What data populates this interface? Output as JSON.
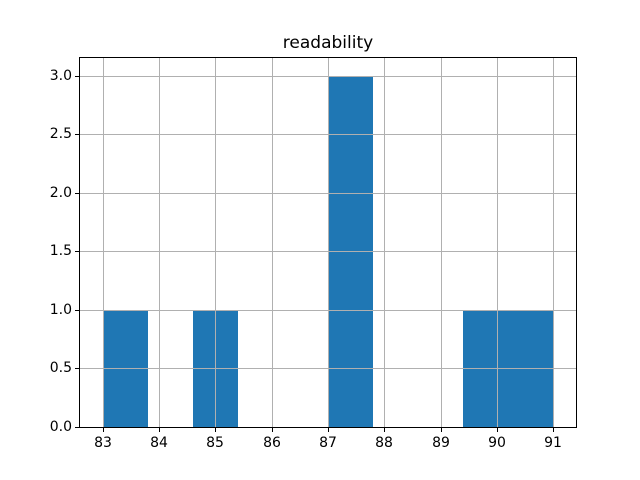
{
  "chart_data": {
    "type": "bar",
    "subtype": "histogram",
    "title": "readability",
    "xlabel": "",
    "ylabel": "",
    "bin_edges": [
      83.0,
      83.8,
      84.6,
      85.4,
      86.2,
      87.0,
      87.8,
      88.6,
      89.4,
      90.2,
      91.0
    ],
    "counts": [
      1,
      0,
      1,
      0,
      0,
      3,
      0,
      0,
      1,
      1
    ],
    "x_tick_values": [
      83,
      84,
      85,
      86,
      87,
      88,
      89,
      90,
      91
    ],
    "x_tick_labels": [
      "83",
      "84",
      "85",
      "86",
      "87",
      "88",
      "89",
      "90",
      "91"
    ],
    "y_tick_values": [
      0,
      0.5,
      1,
      1.5,
      2,
      2.5,
      3
    ],
    "y_tick_labels": [
      "0.0",
      "0.5",
      "1.0",
      "1.5",
      "2.0",
      "2.5",
      "3.0"
    ],
    "xlim": [
      82.6,
      91.4
    ],
    "ylim": [
      0,
      3.15
    ],
    "grid": true,
    "grid_above_bars": true,
    "legend": false,
    "colors": {
      "bar": "#1f77b4",
      "grid": "#b0b0b0",
      "spine": "#000000",
      "text": "#000000",
      "background": "#ffffff"
    }
  }
}
